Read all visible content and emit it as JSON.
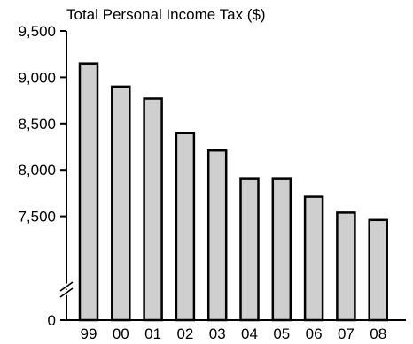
{
  "chart_data": {
    "type": "bar",
    "title": "Total Personal Income Tax ($)",
    "xlabel": "",
    "ylabel": "",
    "categories": [
      "99",
      "00",
      "01",
      "02",
      "03",
      "04",
      "05",
      "06",
      "07",
      "08"
    ],
    "values": [
      9150,
      8900,
      8770,
      8400,
      8210,
      7910,
      7910,
      7710,
      7540,
      7460
    ],
    "ylim": [
      7000,
      9500
    ],
    "y_axis_break": true,
    "y_tick_values": [
      0,
      7500,
      8000,
      8500,
      9000,
      9500
    ],
    "y_tick_labels": [
      "0",
      "7,500",
      "8,000",
      "8,500",
      "9,000",
      "9,500"
    ],
    "grid": false,
    "bar_color": "#cfcfcf",
    "bar_edge_color": "#000000"
  }
}
